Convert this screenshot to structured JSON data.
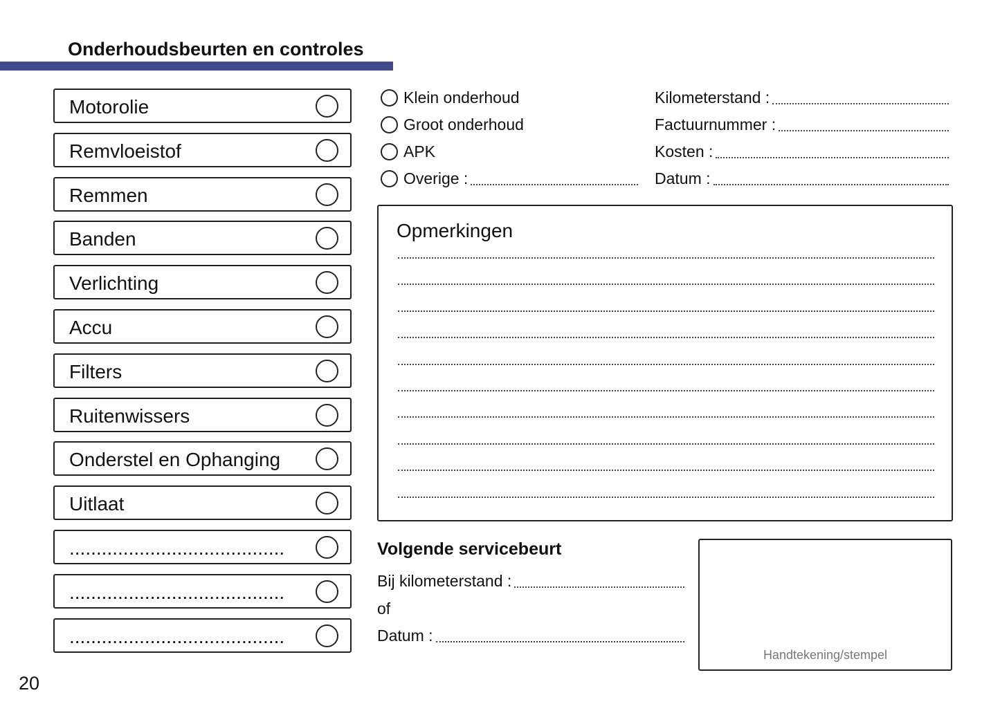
{
  "header": {
    "title": "Onderhoudsbeurten en controles",
    "accent_color": "#434a8c"
  },
  "checklist": [
    {
      "label": "Motorolie"
    },
    {
      "label": "Remvloeistof"
    },
    {
      "label": "Remmen"
    },
    {
      "label": "Banden"
    },
    {
      "label": "Verlichting"
    },
    {
      "label": "Accu"
    },
    {
      "label": "Filters"
    },
    {
      "label": "Ruitenwissers"
    },
    {
      "label": "Onderstel en Ophanging"
    },
    {
      "label": "Uitlaat"
    },
    {
      "label": "........................................"
    },
    {
      "label": "........................................"
    },
    {
      "label": "........................................"
    }
  ],
  "service_type": [
    {
      "label": "Klein onderhoud"
    },
    {
      "label": "Groot onderhoud"
    },
    {
      "label": "APK"
    },
    {
      "label": "Overige :"
    }
  ],
  "fields": [
    {
      "label": "Kilometerstand :"
    },
    {
      "label": "Factuurnummer :"
    },
    {
      "label": "Kosten :"
    },
    {
      "label": "Datum :"
    }
  ],
  "notes": {
    "title": "Opmerkingen"
  },
  "next_service": {
    "title": "Volgende servicebeurt",
    "km_label": "Bij kilometerstand :",
    "or_label": "of",
    "date_label": "Datum :"
  },
  "stamp": {
    "label": "Handtekening/stempel"
  },
  "page_number": "20"
}
